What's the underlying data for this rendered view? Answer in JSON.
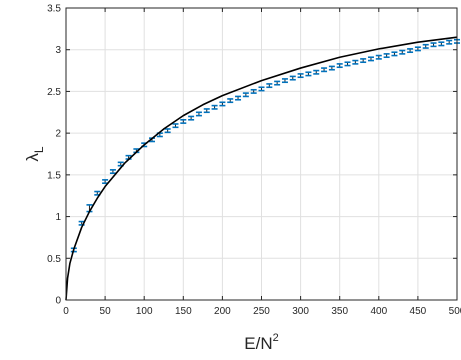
{
  "chart_data": {
    "type": "scatter",
    "xlabel": "E/N",
    "xlabel_sup": "2",
    "ylabel": "λ",
    "ylabel_sub": "L",
    "xlim": [
      0,
      500
    ],
    "ylim": [
      0,
      3.5
    ],
    "x_ticks": [
      0,
      50,
      100,
      150,
      200,
      250,
      300,
      350,
      400,
      450,
      500
    ],
    "x_tick_labels": [
      "0",
      "50",
      "100",
      "150",
      "200",
      "250",
      "300",
      "350",
      "400",
      "450",
      "500"
    ],
    "y_ticks": [
      0,
      0.5,
      1,
      1.5,
      2,
      2.5,
      3,
      3.5
    ],
    "y_tick_labels": [
      "0",
      "0.5",
      "1",
      "1.5",
      "2",
      "2.5",
      "3",
      "3.5"
    ],
    "grid": true,
    "series": [
      {
        "kind": "points-with-errorbars",
        "color": "#0072bd",
        "errorbar_color": "#1f1f1f",
        "x": [
          10,
          20,
          30,
          40,
          50,
          60,
          70,
          80,
          90,
          100,
          110,
          120,
          130,
          140,
          150,
          160,
          170,
          180,
          190,
          200,
          210,
          220,
          230,
          240,
          250,
          260,
          270,
          280,
          290,
          300,
          310,
          320,
          330,
          340,
          350,
          360,
          370,
          380,
          390,
          400,
          410,
          420,
          430,
          440,
          450,
          460,
          470,
          480,
          490,
          500
        ],
        "y": [
          0.6,
          0.92,
          1.1,
          1.28,
          1.42,
          1.54,
          1.63,
          1.71,
          1.79,
          1.86,
          1.92,
          1.98,
          2.03,
          2.09,
          2.14,
          2.18,
          2.23,
          2.27,
          2.31,
          2.35,
          2.39,
          2.42,
          2.46,
          2.5,
          2.53,
          2.57,
          2.6,
          2.63,
          2.66,
          2.69,
          2.71,
          2.73,
          2.76,
          2.78,
          2.81,
          2.83,
          2.85,
          2.87,
          2.89,
          2.91,
          2.93,
          2.95,
          2.97,
          2.99,
          3.01,
          3.04,
          3.06,
          3.07,
          3.09,
          3.1
        ],
        "yerr": [
          0.02,
          0.02,
          0.04,
          0.02,
          0.02,
          0.02,
          0.02,
          0.02,
          0.02,
          0.02,
          0.02,
          0.02,
          0.02,
          0.02,
          0.02,
          0.02,
          0.02,
          0.02,
          0.02,
          0.02,
          0.02,
          0.02,
          0.02,
          0.02,
          0.02,
          0.02,
          0.02,
          0.02,
          0.02,
          0.02,
          0.02,
          0.02,
          0.02,
          0.02,
          0.02,
          0.02,
          0.02,
          0.02,
          0.02,
          0.02,
          0.02,
          0.02,
          0.02,
          0.02,
          0.02,
          0.02,
          0.02,
          0.02,
          0.02,
          0.02
        ]
      },
      {
        "kind": "line",
        "color": "#000000",
        "x": [
          0,
          2,
          5,
          10,
          20,
          30,
          40,
          50,
          75,
          100,
          125,
          150,
          175,
          200,
          250,
          300,
          350,
          400,
          450,
          500
        ],
        "y": [
          0,
          0.26,
          0.44,
          0.61,
          0.87,
          1.06,
          1.22,
          1.36,
          1.64,
          1.86,
          2.05,
          2.21,
          2.34,
          2.45,
          2.63,
          2.78,
          2.91,
          3.01,
          3.09,
          3.15
        ]
      }
    ]
  }
}
